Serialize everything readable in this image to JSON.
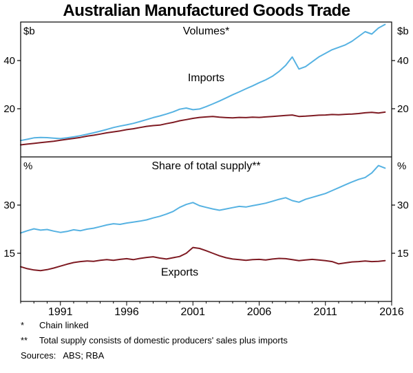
{
  "title": "Australian Manufactured Goods Trade",
  "x_axis": {
    "min": 1988,
    "max": 2016,
    "ticks": [
      1991,
      1996,
      2001,
      2006,
      2011,
      2016
    ],
    "minor_tick_step": 1
  },
  "chart_data": [
    {
      "type": "line",
      "panel": "top",
      "title": "Volumes*",
      "unit": "$b",
      "ylim": [
        0,
        56
      ],
      "yticks": [
        20,
        40
      ],
      "x": [
        1988,
        1988.5,
        1989,
        1989.5,
        1990,
        1990.5,
        1991,
        1991.5,
        1992,
        1992.5,
        1993,
        1993.5,
        1994,
        1994.5,
        1995,
        1995.5,
        1996,
        1996.5,
        1997,
        1997.5,
        1998,
        1998.5,
        1999,
        1999.5,
        2000,
        2000.5,
        2001,
        2001.5,
        2002,
        2002.5,
        2003,
        2003.5,
        2004,
        2004.5,
        2005,
        2005.5,
        2006,
        2006.5,
        2007,
        2007.5,
        2008,
        2008.5,
        2009,
        2009.5,
        2010,
        2010.5,
        2011,
        2011.5,
        2012,
        2012.5,
        2013,
        2013.5,
        2014,
        2014.5,
        2015,
        2015.5
      ],
      "series": [
        {
          "name": "Imports",
          "color": "#56B2E2",
          "label_x": 2002,
          "label_y": 31.5,
          "values": [
            6.8,
            7.3,
            7.9,
            8.1,
            8.0,
            7.8,
            7.6,
            7.9,
            8.3,
            8.8,
            9.4,
            10.0,
            10.7,
            11.4,
            12.2,
            12.8,
            13.3,
            13.9,
            14.7,
            15.5,
            16.3,
            17.0,
            17.8,
            18.7,
            19.8,
            20.3,
            19.6,
            19.9,
            20.9,
            22.0,
            23.2,
            24.5,
            25.8,
            27.0,
            28.3,
            29.5,
            30.8,
            32.0,
            33.5,
            35.5,
            38.0,
            41.5,
            36.5,
            37.5,
            39.5,
            41.5,
            43.0,
            44.5,
            45.5,
            46.5,
            48.0,
            50.0,
            52.0,
            51.0,
            53.5,
            55.0
          ]
        },
        {
          "name": "Exports",
          "color": "#7E1A22",
          "values": [
            5.0,
            5.3,
            5.6,
            5.9,
            6.2,
            6.5,
            6.9,
            7.3,
            7.7,
            8.1,
            8.6,
            9.0,
            9.5,
            10.0,
            10.4,
            10.8,
            11.3,
            11.7,
            12.2,
            12.7,
            13.0,
            13.2,
            13.8,
            14.3,
            15.0,
            15.5,
            16.0,
            16.4,
            16.6,
            16.8,
            16.5,
            16.3,
            16.2,
            16.4,
            16.3,
            16.5,
            16.4,
            16.6,
            16.8,
            17.0,
            17.2,
            17.4,
            16.8,
            16.9,
            17.1,
            17.3,
            17.4,
            17.6,
            17.5,
            17.7,
            17.8,
            18.0,
            18.3,
            18.5,
            18.2,
            18.6
          ]
        }
      ]
    },
    {
      "type": "line",
      "panel": "bottom",
      "title": "Share of total supply**",
      "unit": "%",
      "ylim": [
        0,
        45
      ],
      "yticks": [
        15,
        30
      ],
      "x": [
        1988,
        1988.5,
        1989,
        1989.5,
        1990,
        1990.5,
        1991,
        1991.5,
        1992,
        1992.5,
        1993,
        1993.5,
        1994,
        1994.5,
        1995,
        1995.5,
        1996,
        1996.5,
        1997,
        1997.5,
        1998,
        1998.5,
        1999,
        1999.5,
        2000,
        2000.5,
        2001,
        2001.5,
        2002,
        2002.5,
        2003,
        2003.5,
        2004,
        2004.5,
        2005,
        2005.5,
        2006,
        2006.5,
        2007,
        2007.5,
        2008,
        2008.5,
        2009,
        2009.5,
        2010,
        2010.5,
        2011,
        2011.5,
        2012,
        2012.5,
        2013,
        2013.5,
        2014,
        2014.5,
        2015,
        2015.5
      ],
      "series": [
        {
          "name": "Imports",
          "color": "#56B2E2",
          "values": [
            21.3,
            22.0,
            22.6,
            22.2,
            22.4,
            21.9,
            21.5,
            21.8,
            22.3,
            22.0,
            22.5,
            22.8,
            23.3,
            23.8,
            24.2,
            24.0,
            24.4,
            24.7,
            25.0,
            25.4,
            26.0,
            26.5,
            27.2,
            28.0,
            29.3,
            30.2,
            30.8,
            29.8,
            29.3,
            28.8,
            28.4,
            28.8,
            29.2,
            29.6,
            29.4,
            29.8,
            30.2,
            30.6,
            31.2,
            31.8,
            32.3,
            31.4,
            30.9,
            31.8,
            32.4,
            33.0,
            33.6,
            34.5,
            35.4,
            36.3,
            37.2,
            38.0,
            38.6,
            40.0,
            42.3,
            41.5
          ]
        },
        {
          "name": "Exports",
          "color": "#7E1A22",
          "label_x": 2000,
          "label_y": 8,
          "values": [
            10.8,
            10.2,
            9.8,
            9.6,
            9.9,
            10.4,
            11.0,
            11.6,
            12.1,
            12.4,
            12.6,
            12.5,
            12.8,
            13.0,
            12.8,
            13.1,
            13.3,
            13.0,
            13.4,
            13.7,
            13.9,
            13.5,
            13.2,
            13.6,
            14.0,
            15.0,
            16.8,
            16.5,
            15.8,
            15.0,
            14.2,
            13.6,
            13.2,
            13.0,
            12.8,
            13.0,
            13.1,
            12.9,
            13.2,
            13.4,
            13.3,
            13.0,
            12.7,
            12.9,
            13.1,
            12.9,
            12.7,
            12.4,
            11.7,
            12.0,
            12.3,
            12.4,
            12.6,
            12.4,
            12.5,
            12.7
          ]
        }
      ]
    }
  ],
  "footnotes": [
    {
      "marker": "*",
      "text": "Chain linked"
    },
    {
      "marker": "**",
      "text": "Total supply consists of domestic producers' sales plus imports"
    }
  ],
  "sources": {
    "label": "Sources:",
    "text": "ABS; RBA"
  },
  "colors": {
    "imports": "#56B2E2",
    "exports": "#7E1A22",
    "axis": "#000000"
  }
}
